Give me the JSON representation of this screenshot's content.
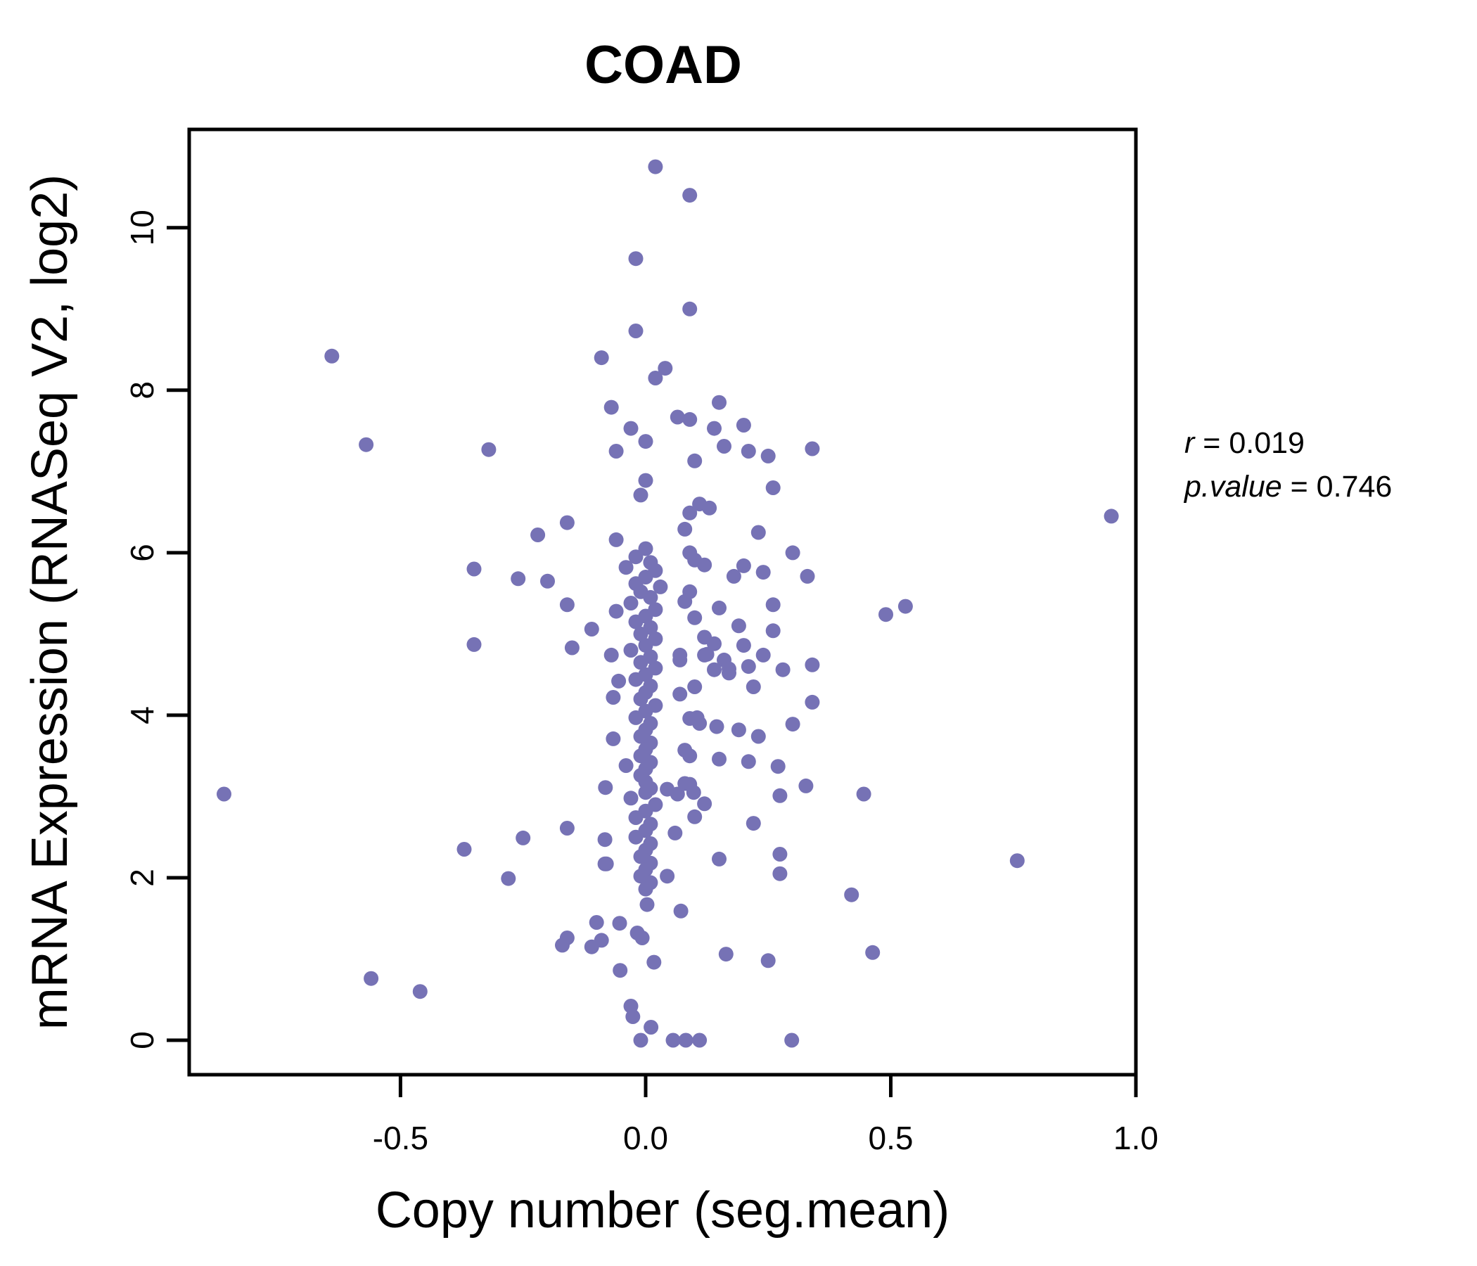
{
  "title": {
    "text": "COAD",
    "color": "#7A74BD"
  },
  "annotation": {
    "r_var": "r",
    "r_rest": " = 0.019",
    "p_var": "p.value",
    "p_rest": " = 0.746"
  },
  "chart_data": {
    "type": "scatter",
    "title": "COAD",
    "xlabel": "Copy number (seg.mean)",
    "ylabel": "mRNA Expression (RNASeq V2, log2)",
    "x_tick_values": [
      -0.5,
      0.0,
      0.5,
      1.0
    ],
    "x_tick_labels": [
      "-0.5",
      "0.0",
      "0.5",
      "1.0"
    ],
    "y_tick_values": [
      0,
      2,
      4,
      6,
      8,
      10
    ],
    "y_tick_labels": [
      "0",
      "2",
      "4",
      "6",
      "8",
      "10"
    ],
    "xlim": [
      -0.931,
      1.0
    ],
    "ylim": [
      -0.424,
      11.21
    ],
    "grid": false,
    "legend_position": "none",
    "stats": {
      "r": 0.019,
      "p_value": 0.746
    },
    "point_color": "#7672B5",
    "point_radius_px": 10.5,
    "points": [
      [
        0.02,
        10.75
      ],
      [
        0.09,
        10.4
      ],
      [
        -0.02,
        9.62
      ],
      [
        0.09,
        9.0
      ],
      [
        -0.64,
        8.42
      ],
      [
        -0.09,
        8.4
      ],
      [
        -0.02,
        8.73
      ],
      [
        0.02,
        8.15
      ],
      [
        0.04,
        8.27
      ],
      [
        -0.07,
        7.79
      ],
      [
        -0.03,
        7.53
      ],
      [
        0.0,
        7.37
      ],
      [
        -0.57,
        7.33
      ],
      [
        0.15,
        7.85
      ],
      [
        0.065,
        7.67
      ],
      [
        0.09,
        7.64
      ],
      [
        0.14,
        7.53
      ],
      [
        0.2,
        7.57
      ],
      [
        -0.32,
        7.27
      ],
      [
        -0.06,
        7.25
      ],
      [
        0.16,
        7.31
      ],
      [
        0.21,
        7.25
      ],
      [
        0.25,
        7.19
      ],
      [
        0.34,
        7.28
      ],
      [
        0.1,
        7.13
      ],
      [
        0.26,
        6.8
      ],
      [
        0.0,
        6.89
      ],
      [
        -0.01,
        6.71
      ],
      [
        -0.16,
        6.37
      ],
      [
        -0.22,
        6.22
      ],
      [
        -0.06,
        6.16
      ],
      [
        0.09,
        6.49
      ],
      [
        0.11,
        6.6
      ],
      [
        0.13,
        6.55
      ],
      [
        0.08,
        6.29
      ],
      [
        0.95,
        6.45
      ],
      [
        0.23,
        6.25
      ],
      [
        0.3,
        6.0
      ],
      [
        0.09,
        6.0
      ],
      [
        0.1,
        5.91
      ],
      [
        0.12,
        5.85
      ],
      [
        0.2,
        5.84
      ],
      [
        0.24,
        5.76
      ],
      [
        0.33,
        5.71
      ],
      [
        0.18,
        5.71
      ],
      [
        -0.35,
        5.8
      ],
      [
        -0.26,
        5.68
      ],
      [
        -0.2,
        5.65
      ],
      [
        -0.16,
        5.36
      ],
      [
        -0.06,
        5.28
      ],
      [
        -0.11,
        5.06
      ],
      [
        0.09,
        5.52
      ],
      [
        0.08,
        5.4
      ],
      [
        0.26,
        5.36
      ],
      [
        0.15,
        5.32
      ],
      [
        0.1,
        5.2
      ],
      [
        0.19,
        5.1
      ],
      [
        0.49,
        5.24
      ],
      [
        0.53,
        5.34
      ],
      [
        0.26,
        5.04
      ],
      [
        -0.35,
        4.87
      ],
      [
        -0.15,
        4.83
      ],
      [
        0.12,
        4.96
      ],
      [
        0.14,
        4.88
      ],
      [
        0.12,
        4.74
      ],
      [
        0.16,
        4.68
      ],
      [
        0.14,
        4.56
      ],
      [
        0.17,
        4.52
      ],
      [
        0.2,
        4.86
      ],
      [
        0.24,
        4.74
      ],
      [
        0.28,
        4.56
      ],
      [
        0.07,
        4.68
      ],
      [
        0.1,
        4.35
      ],
      [
        0.22,
        4.35
      ],
      [
        0.34,
        4.62
      ],
      [
        0.34,
        4.16
      ],
      [
        -0.07,
        4.74
      ],
      [
        -0.055,
        4.42
      ],
      [
        -0.066,
        4.22
      ],
      [
        0.07,
        4.74
      ],
      [
        0.07,
        4.26
      ],
      [
        0.17,
        4.57
      ],
      [
        0.21,
        4.6
      ],
      [
        0.125,
        4.75
      ],
      [
        0.11,
        3.9
      ],
      [
        0.3,
        3.89
      ],
      [
        0.08,
        3.57
      ],
      [
        0.15,
        3.46
      ],
      [
        0.21,
        3.43
      ],
      [
        0.27,
        3.37
      ],
      [
        -0.066,
        3.71
      ],
      [
        -0.04,
        3.38
      ],
      [
        0.09,
        3.96
      ],
      [
        0.105,
        3.97
      ],
      [
        0.145,
        3.86
      ],
      [
        0.19,
        3.82
      ],
      [
        0.23,
        3.74
      ],
      [
        0.09,
        3.5
      ],
      [
        0.09,
        3.15
      ],
      [
        0.065,
        3.03
      ],
      [
        0.098,
        3.05
      ],
      [
        0.044,
        3.09
      ],
      [
        0.12,
        2.91
      ],
      [
        0.1,
        2.75
      ],
      [
        0.22,
        2.67
      ],
      [
        0.06,
        2.55
      ],
      [
        0.274,
        3.01
      ],
      [
        0.327,
        3.13
      ],
      [
        0.445,
        3.03
      ],
      [
        -0.86,
        3.03
      ],
      [
        -0.082,
        3.11
      ],
      [
        0.08,
        3.16
      ],
      [
        0.15,
        2.23
      ],
      [
        -0.083,
        2.47
      ],
      [
        -0.083,
        2.17
      ],
      [
        0.274,
        2.29
      ],
      [
        0.274,
        2.05
      ],
      [
        0.044,
        2.02
      ],
      [
        0.42,
        1.79
      ],
      [
        0.758,
        2.21
      ],
      [
        -0.37,
        2.35
      ],
      [
        -0.25,
        2.49
      ],
      [
        -0.28,
        1.99
      ],
      [
        -0.16,
        2.61
      ],
      [
        -0.08,
        2.17
      ],
      [
        0.003,
        1.67
      ],
      [
        0.072,
        1.59
      ],
      [
        -0.053,
        1.44
      ],
      [
        -0.017,
        1.32
      ],
      [
        -0.007,
        1.26
      ],
      [
        -0.16,
        1.26
      ],
      [
        -0.1,
        1.45
      ],
      [
        -0.17,
        1.17
      ],
      [
        -0.11,
        1.15
      ],
      [
        -0.09,
        1.23
      ],
      [
        0.164,
        1.06
      ],
      [
        0.25,
        0.98
      ],
      [
        0.463,
        1.08
      ],
      [
        -0.56,
        0.76
      ],
      [
        -0.46,
        0.6
      ],
      [
        0.017,
        0.96
      ],
      [
        -0.052,
        0.86
      ],
      [
        -0.026,
        0.29
      ],
      [
        0.011,
        0.16
      ],
      [
        -0.03,
        0.42
      ],
      [
        -0.01,
        0.0
      ],
      [
        0.056,
        0.0
      ],
      [
        0.082,
        0.0
      ],
      [
        0.11,
        0.0
      ],
      [
        0.298,
        0.0
      ],
      [
        0.0,
        6.05
      ],
      [
        -0.02,
        5.95
      ],
      [
        0.01,
        5.88
      ],
      [
        -0.04,
        5.82
      ],
      [
        0.02,
        5.78
      ],
      [
        0.0,
        5.7
      ],
      [
        -0.02,
        5.62
      ],
      [
        0.03,
        5.58
      ],
      [
        -0.01,
        5.52
      ],
      [
        0.01,
        5.45
      ],
      [
        -0.03,
        5.38
      ],
      [
        0.02,
        5.3
      ],
      [
        0.0,
        5.22
      ],
      [
        -0.02,
        5.15
      ],
      [
        0.01,
        5.08
      ],
      [
        -0.01,
        5.0
      ],
      [
        0.02,
        4.94
      ],
      [
        0.0,
        4.86
      ],
      [
        -0.03,
        4.8
      ],
      [
        0.01,
        4.72
      ],
      [
        -0.01,
        4.65
      ],
      [
        0.02,
        4.58
      ],
      [
        0.0,
        4.5
      ],
      [
        -0.02,
        4.44
      ],
      [
        0.01,
        4.36
      ],
      [
        0.0,
        4.28
      ],
      [
        -0.01,
        4.2
      ],
      [
        0.02,
        4.12
      ],
      [
        0.0,
        4.05
      ],
      [
        -0.02,
        3.97
      ],
      [
        0.01,
        3.9
      ],
      [
        0.0,
        3.82
      ],
      [
        -0.01,
        3.74
      ],
      [
        0.01,
        3.66
      ],
      [
        0.0,
        3.58
      ],
      [
        -0.01,
        3.5
      ],
      [
        0.01,
        3.42
      ],
      [
        0.0,
        3.34
      ],
      [
        -0.01,
        3.26
      ],
      [
        0.0,
        3.18
      ],
      [
        0.01,
        3.1
      ],
      [
        0.0,
        3.05
      ],
      [
        -0.03,
        2.98
      ],
      [
        0.02,
        2.9
      ],
      [
        0.0,
        2.82
      ],
      [
        -0.02,
        2.74
      ],
      [
        0.01,
        2.66
      ],
      [
        0.0,
        2.58
      ],
      [
        -0.02,
        2.5
      ],
      [
        0.01,
        2.42
      ],
      [
        0.0,
        2.34
      ],
      [
        -0.01,
        2.26
      ],
      [
        0.01,
        2.18
      ],
      [
        0.0,
        2.1
      ],
      [
        -0.01,
        2.02
      ],
      [
        0.01,
        1.94
      ],
      [
        0.0,
        1.86
      ]
    ]
  }
}
